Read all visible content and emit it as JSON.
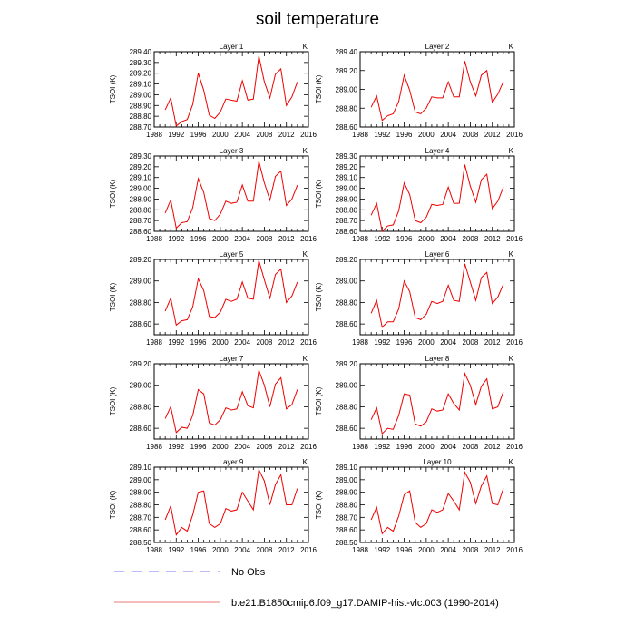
{
  "title": "soil temperature",
  "legend": {
    "entries": [
      {
        "label": "No Obs",
        "color": "#7777ee",
        "style": "dashed"
      },
      {
        "label": "b.e21.B1850cmip6.f09_g17.DAMIP-hist-vlc.003 (1990-2014)",
        "color": "#ee7777",
        "style": "solid"
      }
    ]
  },
  "chart_data": [
    {
      "type": "line",
      "title": "Layer 1",
      "units": "K",
      "ylabel": "TSOI  (K)",
      "xlim": [
        1988,
        2016
      ],
      "xticks": [
        1988,
        1992,
        1996,
        2000,
        2004,
        2008,
        2012,
        2016
      ],
      "ylim": [
        288.7,
        289.4
      ],
      "yticks": [
        "288.70",
        "288.80",
        "288.90",
        "289.00",
        "289.10",
        "289.20",
        "289.30",
        "289.40"
      ],
      "x": [
        1990,
        1991,
        1992,
        1993,
        1994,
        1995,
        1996,
        1997,
        1998,
        1999,
        2000,
        2001,
        2002,
        2003,
        2004,
        2005,
        2006,
        2007,
        2008,
        2009,
        2010,
        2011,
        2012,
        2013,
        2014
      ],
      "series": [
        {
          "color": "#ee0000",
          "values": [
            288.86,
            288.97,
            288.71,
            288.75,
            288.77,
            288.91,
            289.2,
            289.04,
            288.81,
            288.78,
            288.84,
            288.96,
            288.95,
            288.94,
            289.13,
            288.95,
            288.96,
            289.36,
            289.12,
            288.97,
            289.19,
            289.24,
            288.9,
            288.98,
            289.12
          ]
        }
      ]
    },
    {
      "type": "line",
      "title": "Layer 2",
      "units": "K",
      "ylabel": "TSOI  (K)",
      "xlim": [
        1988,
        2016
      ],
      "xticks": [
        1988,
        1992,
        1996,
        2000,
        2004,
        2008,
        2012,
        2016
      ],
      "ylim": [
        288.6,
        289.4
      ],
      "yticks": [
        "288.60",
        "288.80",
        "289.00",
        "289.20",
        "289.40"
      ],
      "x": [
        1990,
        1991,
        1992,
        1993,
        1994,
        1995,
        1996,
        1997,
        1998,
        1999,
        2000,
        2001,
        2002,
        2003,
        2004,
        2005,
        2006,
        2007,
        2008,
        2009,
        2010,
        2011,
        2012,
        2013,
        2014
      ],
      "series": [
        {
          "color": "#ee0000",
          "values": [
            288.81,
            288.93,
            288.67,
            288.72,
            288.74,
            288.87,
            289.15,
            288.99,
            288.76,
            288.74,
            288.8,
            288.92,
            288.91,
            288.91,
            289.08,
            288.92,
            288.92,
            289.3,
            289.08,
            288.93,
            289.15,
            289.2,
            288.86,
            288.95,
            289.08
          ]
        }
      ]
    },
    {
      "type": "line",
      "title": "Layer 3",
      "units": "K",
      "ylabel": "TSOI  (K)",
      "xlim": [
        1988,
        2016
      ],
      "xticks": [
        1988,
        1992,
        1996,
        2000,
        2004,
        2008,
        2012,
        2016
      ],
      "ylim": [
        288.6,
        289.3
      ],
      "yticks": [
        "288.60",
        "288.70",
        "288.80",
        "288.90",
        "289.00",
        "289.10",
        "289.20",
        "289.30"
      ],
      "x": [
        1990,
        1991,
        1992,
        1993,
        1994,
        1995,
        1996,
        1997,
        1998,
        1999,
        2000,
        2001,
        2002,
        2003,
        2004,
        2005,
        2006,
        2007,
        2008,
        2009,
        2010,
        2011,
        2012,
        2013,
        2014
      ],
      "series": [
        {
          "color": "#ee0000",
          "values": [
            288.77,
            288.89,
            288.63,
            288.68,
            288.69,
            288.82,
            289.09,
            288.96,
            288.72,
            288.7,
            288.76,
            288.88,
            288.86,
            288.87,
            289.03,
            288.88,
            288.88,
            289.25,
            289.05,
            288.89,
            289.11,
            289.16,
            288.84,
            288.9,
            289.03
          ]
        }
      ]
    },
    {
      "type": "line",
      "title": "Layer 4",
      "units": "K",
      "ylabel": "TSOI  (K)",
      "xlim": [
        1988,
        2016
      ],
      "xticks": [
        1988,
        1992,
        1996,
        2000,
        2004,
        2008,
        2012,
        2016
      ],
      "ylim": [
        288.6,
        289.3
      ],
      "yticks": [
        "288.60",
        "288.70",
        "288.80",
        "288.90",
        "289.00",
        "289.10",
        "289.20",
        "289.30"
      ],
      "x": [
        1990,
        1991,
        1992,
        1993,
        1994,
        1995,
        1996,
        1997,
        1998,
        1999,
        2000,
        2001,
        2002,
        2003,
        2004,
        2005,
        2006,
        2007,
        2008,
        2009,
        2010,
        2011,
        2012,
        2013,
        2014
      ],
      "series": [
        {
          "color": "#ee0000",
          "values": [
            288.75,
            288.86,
            288.6,
            288.65,
            288.66,
            288.79,
            289.05,
            288.94,
            288.7,
            288.68,
            288.73,
            288.85,
            288.84,
            288.85,
            289.01,
            288.86,
            288.86,
            289.22,
            289.02,
            288.87,
            289.08,
            289.13,
            288.81,
            288.88,
            289.01
          ]
        }
      ]
    },
    {
      "type": "line",
      "title": "Layer 5",
      "units": "K",
      "ylabel": "TSOI  (K)",
      "xlim": [
        1988,
        2016
      ],
      "xticks": [
        1988,
        1992,
        1996,
        2000,
        2004,
        2008,
        2012,
        2016
      ],
      "ylim": [
        288.5,
        289.2
      ],
      "yticks": [
        "288.60",
        "288.80",
        "289.00",
        "289.20"
      ],
      "x": [
        1990,
        1991,
        1992,
        1993,
        1994,
        1995,
        1996,
        1997,
        1998,
        1999,
        2000,
        2001,
        2002,
        2003,
        2004,
        2005,
        2006,
        2007,
        2008,
        2009,
        2010,
        2011,
        2012,
        2013,
        2014
      ],
      "series": [
        {
          "color": "#ee0000",
          "values": [
            288.72,
            288.84,
            288.59,
            288.63,
            288.64,
            288.76,
            289.02,
            288.91,
            288.67,
            288.66,
            288.71,
            288.83,
            288.81,
            288.83,
            288.99,
            288.84,
            288.83,
            289.19,
            289.01,
            288.84,
            289.06,
            289.11,
            288.8,
            288.86,
            288.99
          ]
        }
      ]
    },
    {
      "type": "line",
      "title": "Layer 6",
      "units": "K",
      "ylabel": "TSOI  (K)",
      "xlim": [
        1988,
        2016
      ],
      "xticks": [
        1988,
        1992,
        1996,
        2000,
        2004,
        2008,
        2012,
        2016
      ],
      "ylim": [
        288.5,
        289.2
      ],
      "yticks": [
        "288.60",
        "288.80",
        "289.00",
        "289.20"
      ],
      "x": [
        1990,
        1991,
        1992,
        1993,
        1994,
        1995,
        1996,
        1997,
        1998,
        1999,
        2000,
        2001,
        2002,
        2003,
        2004,
        2005,
        2006,
        2007,
        2008,
        2009,
        2010,
        2011,
        2012,
        2013,
        2014
      ],
      "series": [
        {
          "color": "#ee0000",
          "values": [
            288.7,
            288.82,
            288.57,
            288.62,
            288.62,
            288.74,
            289.0,
            288.9,
            288.66,
            288.64,
            288.69,
            288.81,
            288.79,
            288.81,
            288.96,
            288.82,
            288.81,
            289.16,
            288.99,
            288.82,
            289.03,
            289.08,
            288.79,
            288.85,
            288.97
          ]
        }
      ]
    },
    {
      "type": "line",
      "title": "Layer 7",
      "units": "K",
      "ylabel": "TSOI  (K)",
      "xlim": [
        1988,
        2016
      ],
      "xticks": [
        1988,
        1992,
        1996,
        2000,
        2004,
        2008,
        2012,
        2016
      ],
      "ylim": [
        288.5,
        289.2
      ],
      "yticks": [
        "288.60",
        "288.80",
        "289.00",
        "289.20"
      ],
      "x": [
        1990,
        1991,
        1992,
        1993,
        1994,
        1995,
        1996,
        1997,
        1998,
        1999,
        2000,
        2001,
        2002,
        2003,
        2004,
        2005,
        2006,
        2007,
        2008,
        2009,
        2010,
        2011,
        2012,
        2013,
        2014
      ],
      "series": [
        {
          "color": "#ee0000",
          "values": [
            288.69,
            288.8,
            288.56,
            288.61,
            288.6,
            288.72,
            288.96,
            288.92,
            288.65,
            288.63,
            288.68,
            288.79,
            288.77,
            288.78,
            288.94,
            288.81,
            288.79,
            289.14,
            289.0,
            288.8,
            289.01,
            289.07,
            288.78,
            288.82,
            288.96
          ]
        }
      ]
    },
    {
      "type": "line",
      "title": "Layer 8",
      "units": "K",
      "ylabel": "TSOI  (K)",
      "xlim": [
        1988,
        2016
      ],
      "xticks": [
        1988,
        1992,
        1996,
        2000,
        2004,
        2008,
        2012,
        2016
      ],
      "ylim": [
        288.5,
        289.2
      ],
      "yticks": [
        "288.60",
        "288.80",
        "289.00",
        "289.20"
      ],
      "x": [
        1990,
        1991,
        1992,
        1993,
        1994,
        1995,
        1996,
        1997,
        1998,
        1999,
        2000,
        2001,
        2002,
        2003,
        2004,
        2005,
        2006,
        2007,
        2008,
        2009,
        2010,
        2011,
        2012,
        2013,
        2014
      ],
      "series": [
        {
          "color": "#ee0000",
          "values": [
            288.68,
            288.79,
            288.55,
            288.6,
            288.59,
            288.72,
            288.92,
            288.91,
            288.64,
            288.62,
            288.66,
            288.78,
            288.76,
            288.77,
            288.92,
            288.83,
            288.77,
            289.11,
            289.0,
            288.82,
            288.99,
            289.06,
            288.78,
            288.8,
            288.94
          ]
        }
      ]
    },
    {
      "type": "line",
      "title": "Layer 9",
      "units": "K",
      "ylabel": "TSOI  (K)",
      "xlim": [
        1988,
        2016
      ],
      "xticks": [
        1988,
        1992,
        1996,
        2000,
        2004,
        2008,
        2012,
        2016
      ],
      "ylim": [
        288.5,
        289.1
      ],
      "yticks": [
        "288.50",
        "288.60",
        "288.70",
        "288.80",
        "288.90",
        "289.00",
        "289.10"
      ],
      "x": [
        1990,
        1991,
        1992,
        1993,
        1994,
        1995,
        1996,
        1997,
        1998,
        1999,
        2000,
        2001,
        2002,
        2003,
        2004,
        2005,
        2006,
        2007,
        2008,
        2009,
        2010,
        2011,
        2012,
        2013,
        2014
      ],
      "series": [
        {
          "color": "#ee0000",
          "values": [
            288.68,
            288.79,
            288.56,
            288.62,
            288.59,
            288.72,
            288.9,
            288.91,
            288.65,
            288.62,
            288.65,
            288.77,
            288.75,
            288.76,
            288.9,
            288.83,
            288.76,
            289.08,
            288.99,
            288.8,
            288.96,
            289.04,
            288.8,
            288.8,
            288.93
          ]
        }
      ]
    },
    {
      "type": "line",
      "title": "Layer 10",
      "units": "K",
      "ylabel": "TSOI  (K)",
      "xlim": [
        1988,
        2016
      ],
      "xticks": [
        1988,
        1992,
        1996,
        2000,
        2004,
        2008,
        2012,
        2016
      ],
      "ylim": [
        288.5,
        289.1
      ],
      "yticks": [
        "288.50",
        "288.60",
        "288.70",
        "288.80",
        "288.90",
        "289.00",
        "289.10"
      ],
      "x": [
        1990,
        1991,
        1992,
        1993,
        1994,
        1995,
        1996,
        1997,
        1998,
        1999,
        2000,
        2001,
        2002,
        2003,
        2004,
        2005,
        2006,
        2007,
        2008,
        2009,
        2010,
        2011,
        2012,
        2013,
        2014
      ],
      "series": [
        {
          "color": "#ee0000",
          "values": [
            288.68,
            288.78,
            288.57,
            288.62,
            288.59,
            288.71,
            288.88,
            288.91,
            288.66,
            288.62,
            288.65,
            288.76,
            288.74,
            288.76,
            288.89,
            288.83,
            288.76,
            289.06,
            288.98,
            288.81,
            288.95,
            289.03,
            288.81,
            288.8,
            288.93
          ]
        }
      ]
    }
  ]
}
